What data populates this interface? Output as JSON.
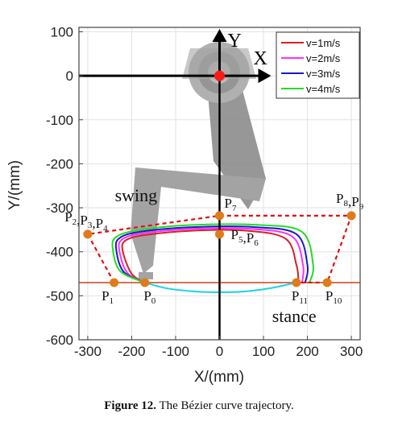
{
  "chart_data": {
    "type": "line",
    "title": "",
    "xlabel": "X/(mm)",
    "ylabel": "Y/(mm)",
    "xlim": [
      -320,
      320
    ],
    "ylim": [
      -600,
      110
    ],
    "xticks": [
      -300,
      -200,
      -100,
      0,
      100,
      200,
      300
    ],
    "yticks": [
      100,
      0,
      -100,
      -200,
      -300,
      -400,
      -500,
      -600
    ],
    "grid": true,
    "legend_position": "top-right",
    "series": [
      {
        "name": "v=1m/s",
        "color": "#d62020"
      },
      {
        "name": "v=2m/s",
        "color": "#ff2eff"
      },
      {
        "name": "v=3m/s",
        "color": "#1818c8"
      },
      {
        "name": "v=4m/s",
        "color": "#22dd22"
      }
    ],
    "stance_curve": {
      "color": "#19d4e6",
      "x": [
        -170,
        -120,
        -60,
        0,
        60,
        120,
        175
      ],
      "y": [
        -470,
        -483,
        -490,
        -492,
        -490,
        -482,
        -470
      ]
    },
    "swing_curves": [
      {
        "series": "v=1m/s",
        "x": [
          -170,
          -200,
          -220,
          -215,
          -170,
          -60,
          60,
          150,
          175,
          180
        ],
        "y": [
          -470,
          -450,
          -400,
          -375,
          -362,
          -352,
          -352,
          -370,
          -430,
          -470
        ]
      },
      {
        "series": "v=2m/s",
        "x": [
          -170,
          -210,
          -228,
          -222,
          -175,
          -60,
          70,
          165,
          190,
          188
        ],
        "y": [
          -470,
          -448,
          -398,
          -372,
          -358,
          -348,
          -348,
          -365,
          -430,
          -470
        ]
      },
      {
        "series": "v=3m/s",
        "x": [
          -170,
          -218,
          -235,
          -228,
          -178,
          -60,
          80,
          175,
          200,
          195
        ],
        "y": [
          -470,
          -446,
          -396,
          -369,
          -354,
          -344,
          -344,
          -360,
          -430,
          -470
        ]
      },
      {
        "series": "v=4m/s",
        "x": [
          -170,
          -226,
          -243,
          -235,
          -180,
          -60,
          90,
          188,
          213,
          205
        ],
        "y": [
          -470,
          -444,
          -394,
          -366,
          -350,
          -339,
          -339,
          -355,
          -430,
          -470
        ]
      }
    ],
    "control_polygon": {
      "color": "#e01010",
      "x": [
        -240,
        -300,
        0,
        300,
        245,
        175
      ],
      "y": [
        -470,
        -360,
        -318,
        -318,
        -470,
        -470
      ]
    },
    "ground_line": {
      "y": -470,
      "color": "#c8401a"
    },
    "control_points": [
      {
        "label": "P",
        "sub": "1",
        "x": -240,
        "y": -470
      },
      {
        "label": "P",
        "sub": "0",
        "x": -170,
        "y": -470
      },
      {
        "label": "P",
        "sub": "2",
        "label2": ",P",
        "sub2": "3",
        "label3": ",P",
        "sub3": "4",
        "x": -300,
        "y": -360
      },
      {
        "label": "P",
        "sub": "5",
        "label2": ",P",
        "sub2": "6",
        "x": 0,
        "y": -360
      },
      {
        "label": "P",
        "sub": "7",
        "x": 0,
        "y": -318
      },
      {
        "label": "P",
        "sub": "8",
        "label2": ",P",
        "sub2": "9",
        "x": 300,
        "y": -318
      },
      {
        "label": "P",
        "sub": "10",
        "x": 245,
        "y": -470
      },
      {
        "label": "P",
        "sub": "11",
        "x": 175,
        "y": -470
      }
    ],
    "annotations": [
      {
        "text": "swing",
        "x": -190,
        "y": -285
      },
      {
        "text": "stance",
        "x": 170,
        "y": -560
      }
    ],
    "frame_axes": {
      "x_label": "X",
      "y_label": "Y",
      "origin": [
        0,
        0
      ]
    }
  },
  "caption": {
    "prefix": "Figure 12.",
    "text": " The Bézier curve trajectory."
  }
}
